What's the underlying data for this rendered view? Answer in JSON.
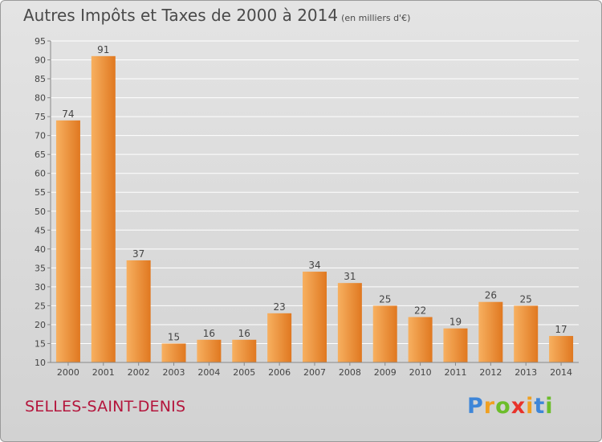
{
  "header": {
    "title": "Autres Impôts et Taxes de 2000 à 2014",
    "unit": "(en milliers d'€)"
  },
  "commune": "SELLES-SAINT-DENIS",
  "logo": {
    "letters": [
      "P",
      "r",
      "o",
      "x",
      "i",
      "t",
      "i"
    ],
    "colors": [
      "#3e86d8",
      "#f0a020",
      "#6cbd2a",
      "#e8322a",
      "#f0a020",
      "#3e86d8",
      "#6cbd2a"
    ]
  },
  "colors": {
    "bar_light": "#f7b060",
    "bar_dark": "#e07820",
    "grid": "#ffffff",
    "text": "#444444"
  },
  "chart_data": {
    "type": "bar",
    "categories": [
      "2000",
      "2001",
      "2002",
      "2003",
      "2004",
      "2005",
      "2006",
      "2007",
      "2008",
      "2009",
      "2010",
      "2011",
      "2012",
      "2013",
      "2014"
    ],
    "values": [
      74,
      91,
      37,
      15,
      16,
      16,
      23,
      34,
      31,
      25,
      22,
      19,
      26,
      25,
      17
    ],
    "ylim": [
      10,
      95
    ],
    "yticks": [
      10,
      15,
      20,
      25,
      30,
      35,
      40,
      45,
      50,
      55,
      60,
      65,
      70,
      75,
      80,
      85,
      90,
      95
    ],
    "grid": true,
    "data_labels": true
  }
}
